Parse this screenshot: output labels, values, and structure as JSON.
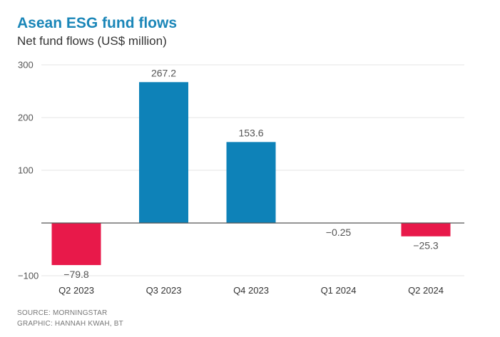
{
  "title": "Asean ESG fund flows",
  "subtitle": "Net fund flows (US$ million)",
  "source": "SOURCE: MORNINGSTAR",
  "credit": "GRAPHIC: HANNAH KWAH, BT",
  "colors": {
    "positive": "#0e82b8",
    "negative": "#e8194a",
    "title": "#1a86b8"
  },
  "chart_data": {
    "type": "bar",
    "title": "Asean ESG fund flows",
    "ylabel": "Net fund flows (US$ million)",
    "xlabel": "",
    "categories": [
      "Q2 2023",
      "Q3 2023",
      "Q4 2023",
      "Q1 2024",
      "Q2 2024"
    ],
    "values": [
      -79.8,
      267.2,
      153.6,
      -0.25,
      -25.3
    ],
    "value_labels": [
      "−79.8",
      "267.2",
      "153.6",
      "−0.25",
      "−25.3"
    ],
    "ylim": [
      -100,
      300
    ],
    "yticks": [
      -100,
      100,
      200,
      300
    ],
    "ytick_labels": [
      "−100",
      "100",
      "200",
      "300"
    ],
    "grid": true
  }
}
